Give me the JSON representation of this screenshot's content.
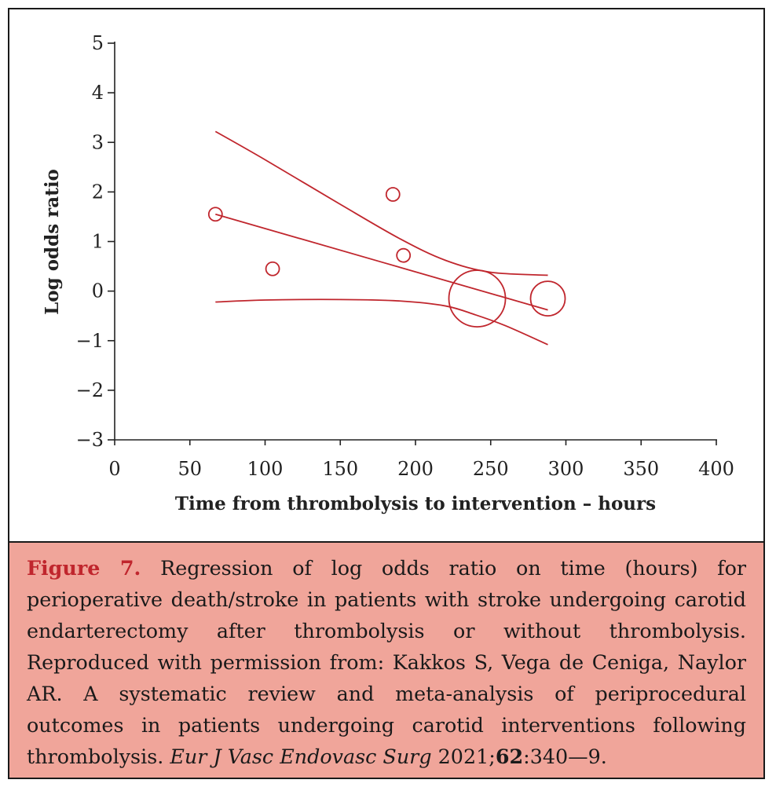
{
  "chart_data": {
    "type": "scatter",
    "xlabel": "Time from thrombolysis to intervention – hours",
    "ylabel": "Log odds ratio",
    "xlim": [
      0,
      400
    ],
    "ylim": [
      -3,
      5
    ],
    "x_ticks": [
      "0",
      "50",
      "100",
      "150",
      "200",
      "250",
      "300",
      "350",
      "400"
    ],
    "y_ticks": [
      "5",
      "4",
      "3",
      "2",
      "1",
      "0",
      "−1",
      "−2",
      "−3"
    ],
    "grid": false,
    "color": "#c0262d",
    "points": [
      {
        "x": 67,
        "y": 1.55,
        "size": "small"
      },
      {
        "x": 105,
        "y": 0.45,
        "size": "small"
      },
      {
        "x": 185,
        "y": 1.95,
        "size": "small"
      },
      {
        "x": 192,
        "y": 0.72,
        "size": "small"
      },
      {
        "x": 241,
        "y": -0.15,
        "size": "large"
      },
      {
        "x": 288,
        "y": -0.15,
        "size": "medium"
      }
    ],
    "regression_line": {
      "x": [
        67,
        288
      ],
      "y": [
        1.55,
        -0.38
      ]
    },
    "ci_upper": {
      "x": [
        67,
        100,
        150,
        190,
        220,
        250,
        288
      ],
      "y": [
        3.22,
        2.65,
        1.75,
        1.05,
        0.62,
        0.38,
        0.32
      ]
    },
    "ci_lower": {
      "x": [
        67,
        100,
        150,
        190,
        220,
        240,
        260,
        288
      ],
      "y": [
        -0.22,
        -0.18,
        -0.17,
        -0.2,
        -0.3,
        -0.48,
        -0.7,
        -1.08
      ]
    }
  },
  "caption": {
    "figure_label": "Figure 7.",
    "text": " Regression of log odds ratio on time (hours) for perioperative death/stroke in patients with stroke undergoing carotid endarterectomy after thrombolysis or without thrombolysis. Reproduced with permission from: Kakkos S, Vega de Ceniga, Naylor AR. A systematic review and meta-analysis of periprocedural outcomes in patients undergoing carotid interventions following thrombolysis. ",
    "journal": "Eur J Vasc Endovasc Surg",
    "year": " 2021;",
    "volume": "62",
    "pages": ":340—9."
  }
}
